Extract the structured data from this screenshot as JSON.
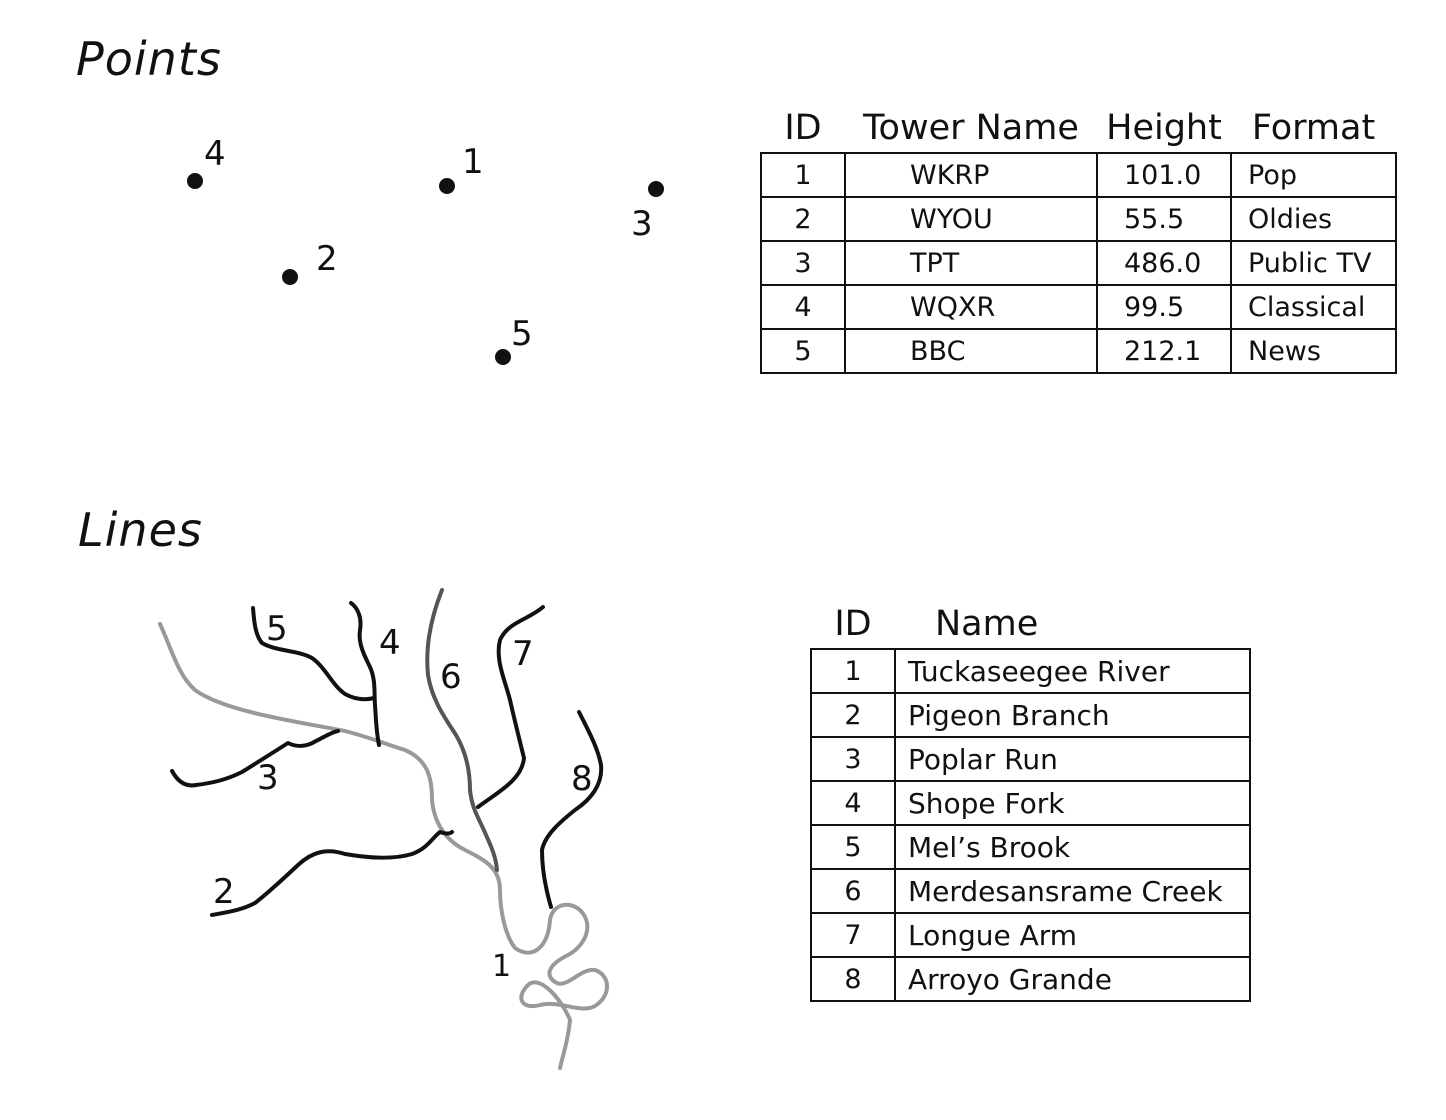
{
  "points_section": {
    "title": "Points",
    "point_labels": [
      "1",
      "2",
      "3",
      "4",
      "5"
    ]
  },
  "towers_table": {
    "headers": [
      "ID",
      "Tower Name",
      "Height",
      "Format"
    ],
    "rows": [
      {
        "id": "1",
        "name": "WKRP",
        "height": "101.0",
        "format": "Pop"
      },
      {
        "id": "2",
        "name": "WYOU",
        "height": "55.5",
        "format": "Oldies"
      },
      {
        "id": "3",
        "name": "TPT",
        "height": "486.0",
        "format": "Public TV"
      },
      {
        "id": "4",
        "name": "WQXR",
        "height": "99.5",
        "format": "Classical"
      },
      {
        "id": "5",
        "name": "BBC",
        "height": "212.1",
        "format": "News"
      }
    ]
  },
  "lines_section": {
    "title": "Lines",
    "line_labels": [
      "1",
      "2",
      "3",
      "4",
      "5",
      "6",
      "7",
      "8"
    ]
  },
  "rivers_table": {
    "headers": [
      "ID",
      "Name"
    ],
    "rows": [
      {
        "id": "1",
        "name": "Tuckaseegee River"
      },
      {
        "id": "2",
        "name": "Pigeon Branch"
      },
      {
        "id": "3",
        "name": "Poplar Run"
      },
      {
        "id": "4",
        "name": "Shope Fork"
      },
      {
        "id": "5",
        "name": "Mel’s Brook"
      },
      {
        "id": "6",
        "name": "Merdesansrame Creek"
      },
      {
        "id": "7",
        "name": "Longue Arm"
      },
      {
        "id": "8",
        "name": "Arroyo Grande"
      }
    ]
  },
  "colors": {
    "ink": "#111111",
    "main_river": "#999999",
    "tributary_6": "#555555",
    "background": "#ffffff"
  }
}
